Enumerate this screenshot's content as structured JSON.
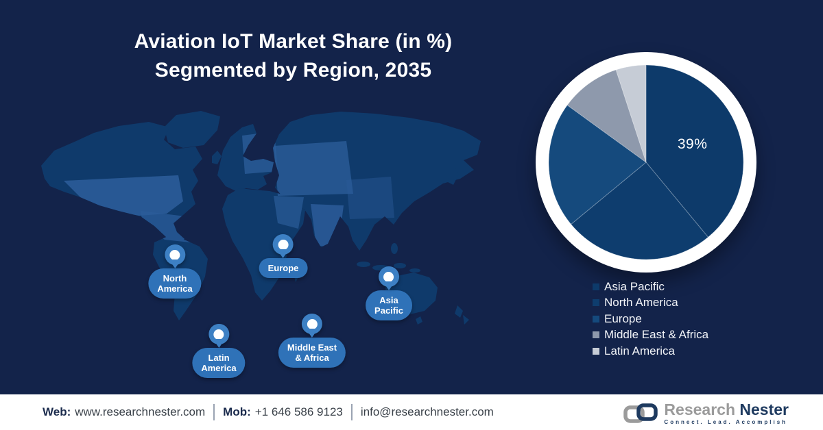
{
  "title": {
    "line1": "Aviation IoT Market Share (in %)",
    "line2": "Segmented by Region, 2035"
  },
  "chart_data": {
    "type": "pie",
    "title": "Aviation IoT Market Share (in %) Segmented by Region, 2035",
    "labels": [
      "Asia Pacific",
      "North America",
      "Europe",
      "Middle East & Africa",
      "Latin America"
    ],
    "values": [
      39,
      25,
      21,
      10,
      5
    ],
    "colors": [
      "#0d3a6a",
      "#0e3d6e",
      "#154a7d",
      "#8e99ac",
      "#c6ccd6"
    ],
    "shown_label": "39%",
    "labeled_slice": "Asia Pacific",
    "start_angle_deg": 0,
    "direction": "clockwise",
    "legend_position": "bottom-right"
  },
  "map": {
    "pins": [
      {
        "name": "north-america",
        "lines": [
          "North",
          "America"
        ]
      },
      {
        "name": "europe",
        "lines": [
          "Europe"
        ]
      },
      {
        "name": "asia-pacific",
        "lines": [
          "Asia",
          "Pacific"
        ]
      },
      {
        "name": "latin-america",
        "lines": [
          "Latin",
          "America"
        ]
      },
      {
        "name": "middle-east-africa",
        "lines": [
          "Middle East",
          "& Africa"
        ]
      }
    ]
  },
  "footer": {
    "web_label": "Web:",
    "web_value": "www.researchnester.com",
    "mob_label": "Mob:",
    "mob_value": "+1 646 586 9123",
    "email": "info@researchnester.com"
  },
  "logo": {
    "brand_gray": "Research",
    "brand_navy": "Nester",
    "tagline": "Connect. Lead. Accomplish"
  },
  "colors": {
    "background": "#13234a",
    "map-base": "#0f3a6b",
    "map-light": "#2b5c99",
    "pin": "#2f72b8",
    "pin-light": "#3d80c4",
    "legend-text": "#f2f4f8",
    "footer-label": "#1b2b4d",
    "footer-text": "#3a4149",
    "logo-gray": "#9b9b9b",
    "logo-navy": "#1e3a5f"
  }
}
